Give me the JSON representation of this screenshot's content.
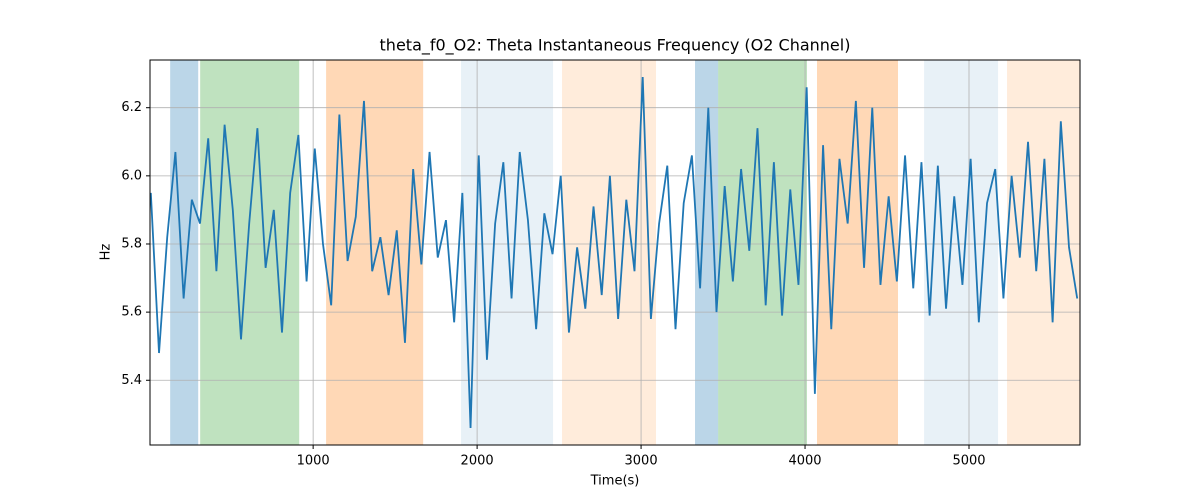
{
  "chart_data": {
    "type": "line",
    "title": "theta_f0_O2: Theta Instantaneous Frequency (O2 Channel)",
    "x_label": "Time(s)",
    "y_label": "Hz",
    "xlim": [
      5,
      5677
    ],
    "ylim": [
      5.21,
      6.34
    ],
    "xticks": [
      1000,
      2000,
      3000,
      4000,
      5000
    ],
    "yticks": [
      5.4,
      5.6,
      5.8,
      {
        "value": 6,
        "label": "6.0"
      },
      6.2
    ],
    "grid": true,
    "spans": [
      {
        "start": 128,
        "end": 299,
        "color": "#1f77b4",
        "opacity": 0.3
      },
      {
        "start": 311,
        "end": 915,
        "color": "#2ca02c",
        "opacity": 0.3
      },
      {
        "start": 1079,
        "end": 1671,
        "color": "#ff7f0e",
        "opacity": 0.3
      },
      {
        "start": 1902,
        "end": 2463,
        "color": "#1f77b4",
        "opacity": 0.1
      },
      {
        "start": 2518,
        "end": 3091,
        "color": "#ff7f0e",
        "opacity": 0.15
      },
      {
        "start": 3329,
        "end": 3470,
        "color": "#1f77b4",
        "opacity": 0.3
      },
      {
        "start": 3470,
        "end": 4012,
        "color": "#2ca02c",
        "opacity": 0.3
      },
      {
        "start": 4073,
        "end": 4567,
        "color": "#ff7f0e",
        "opacity": 0.3
      },
      {
        "start": 4726,
        "end": 5177,
        "color": "#1f77b4",
        "opacity": 0.1
      },
      {
        "start": 5232,
        "end": 5677,
        "color": "#ff7f0e",
        "opacity": 0.15
      }
    ],
    "x": [
      10,
      60,
      110,
      160,
      210,
      260,
      310,
      360,
      410,
      460,
      510,
      560,
      610,
      660,
      710,
      760,
      810,
      860,
      910,
      960,
      1010,
      1060,
      1110,
      1160,
      1210,
      1260,
      1310,
      1360,
      1410,
      1460,
      1510,
      1560,
      1610,
      1660,
      1710,
      1760,
      1810,
      1860,
      1910,
      1960,
      2010,
      2060,
      2110,
      2160,
      2210,
      2260,
      2310,
      2360,
      2410,
      2460,
      2510,
      2560,
      2610,
      2660,
      2710,
      2760,
      2810,
      2860,
      2910,
      2960,
      3010,
      3060,
      3110,
      3160,
      3210,
      3260,
      3310,
      3360,
      3410,
      3460,
      3510,
      3560,
      3610,
      3660,
      3710,
      3760,
      3810,
      3860,
      3910,
      3960,
      4010,
      4060,
      4110,
      4160,
      4210,
      4260,
      4310,
      4360,
      4410,
      4460,
      4510,
      4560,
      4610,
      4660,
      4710,
      4760,
      4810,
      4860,
      4910,
      4960,
      5010,
      5060,
      5110,
      5160,
      5210,
      5260,
      5310,
      5360,
      5410,
      5460,
      5510,
      5560,
      5610,
      5660
    ],
    "series": [
      {
        "color": "#1f77b4",
        "values": [
          5.95,
          5.48,
          5.82,
          6.07,
          5.64,
          5.93,
          5.86,
          6.11,
          5.72,
          6.15,
          5.9,
          5.52,
          5.86,
          6.14,
          5.73,
          5.9,
          5.54,
          5.95,
          6.12,
          5.69,
          6.08,
          5.8,
          5.62,
          6.18,
          5.75,
          5.88,
          6.22,
          5.72,
          5.82,
          5.65,
          5.84,
          5.51,
          6.02,
          5.74,
          6.07,
          5.76,
          5.87,
          5.57,
          5.95,
          5.26,
          6.06,
          5.46,
          5.86,
          6.04,
          5.64,
          6.07,
          5.87,
          5.55,
          5.89,
          5.77,
          6.0,
          5.54,
          5.79,
          5.61,
          5.91,
          5.65,
          6.0,
          5.58,
          5.93,
          5.72,
          6.29,
          5.58,
          5.86,
          6.03,
          5.55,
          5.92,
          6.06,
          5.67,
          6.2,
          5.6,
          5.97,
          5.69,
          6.02,
          5.78,
          6.14,
          5.62,
          6.04,
          5.59,
          5.96,
          5.68,
          6.26,
          5.36,
          6.09,
          5.55,
          6.05,
          5.86,
          6.22,
          5.73,
          6.2,
          5.68,
          5.94,
          5.69,
          6.06,
          5.67,
          6.04,
          5.59,
          6.03,
          5.61,
          5.94,
          5.68,
          6.05,
          5.57,
          5.92,
          6.02,
          5.64,
          6.0,
          5.76,
          6.1,
          5.72,
          6.05,
          5.57,
          6.16,
          5.79,
          5.64
        ]
      }
    ]
  }
}
